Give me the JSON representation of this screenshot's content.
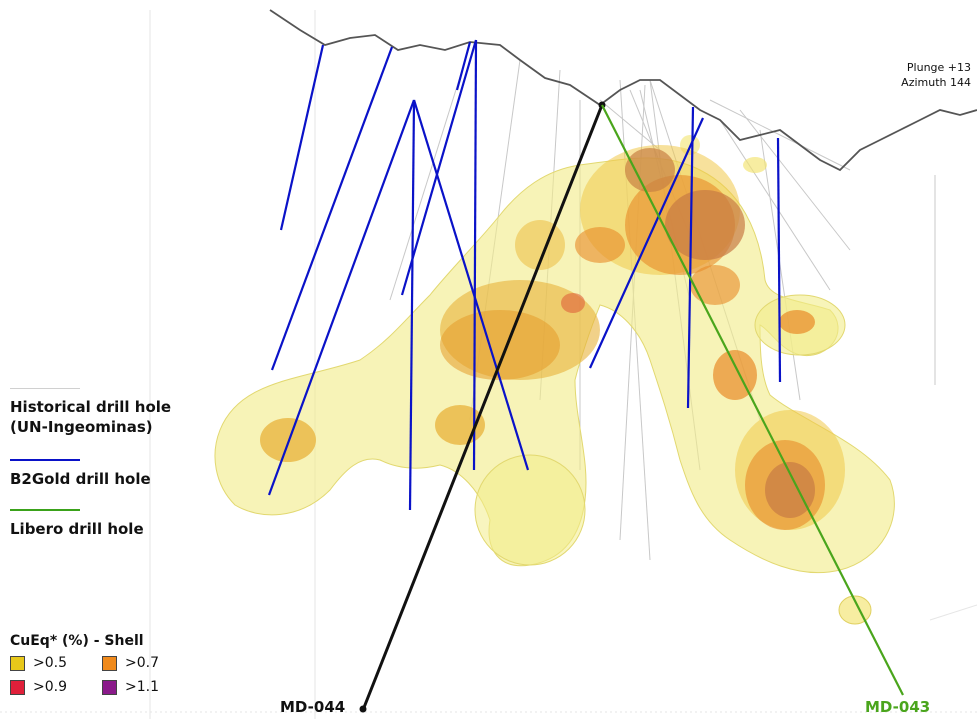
{
  "view": {
    "plunge": "Plunge +13",
    "azimuth": "Azimuth 144"
  },
  "legend": {
    "historical": {
      "label_line1": "Historical drill hole",
      "label_line2": "(UN-Ingeominas)",
      "color": "#c8c8c8"
    },
    "b2gold": {
      "label": "B2Gold drill hole",
      "color": "#0a12c8"
    },
    "libero": {
      "label": "Libero drill hole",
      "color": "#3aa21a"
    }
  },
  "shell_legend": {
    "title": "CuEq* (%) - Shell",
    "items": [
      {
        "label": ">0.5",
        "color": "#e8c81a"
      },
      {
        "label": ">0.7",
        "color": "#f08a1c"
      },
      {
        "label": ">0.9",
        "color": "#e0203a"
      },
      {
        "label": ">1.1",
        "color": "#8a1a8a"
      }
    ]
  },
  "holes": {
    "md044": {
      "label": "MD-044",
      "color": "#111111"
    },
    "md043": {
      "label": "MD-043",
      "color": "#4aa51c"
    }
  }
}
